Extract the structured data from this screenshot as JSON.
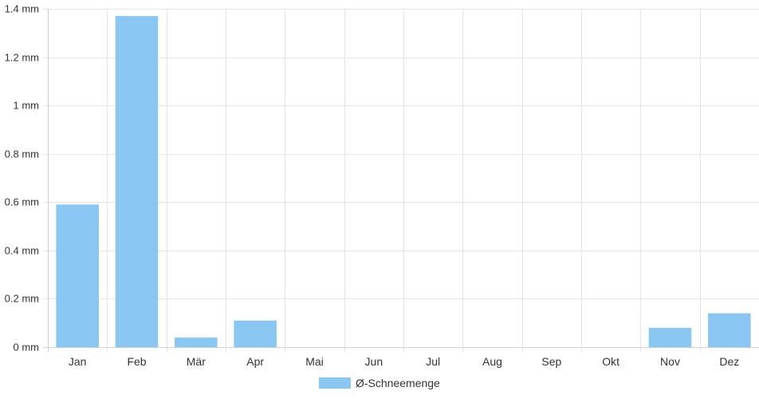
{
  "chart_data": {
    "type": "bar",
    "categories": [
      "Jan",
      "Feb",
      "Mär",
      "Apr",
      "Mai",
      "Jun",
      "Jul",
      "Aug",
      "Sep",
      "Okt",
      "Nov",
      "Dez"
    ],
    "series": [
      {
        "name": "Ø-Schneemenge",
        "values": [
          0.59,
          1.37,
          0.04,
          0.11,
          0,
          0,
          0,
          0,
          0,
          0,
          0.08,
          0.14
        ]
      }
    ],
    "ylim": [
      0,
      1.4
    ],
    "yticks": [
      0,
      0.2,
      0.4,
      0.6,
      0.8,
      1,
      1.2,
      1.4
    ],
    "y_tick_labels": [
      "0 mm",
      "0.2 mm",
      "0.4 mm",
      "0.6 mm",
      "0.8 mm",
      "1 mm",
      "1.2 mm",
      "1.4 mm"
    ],
    "grid": true,
    "legend_position": "bottom-center",
    "colors": {
      "bar_fill": "#89c6f2",
      "grid": "#e5e5e5",
      "axis": "#d0d0d0",
      "text": "#333333"
    }
  }
}
